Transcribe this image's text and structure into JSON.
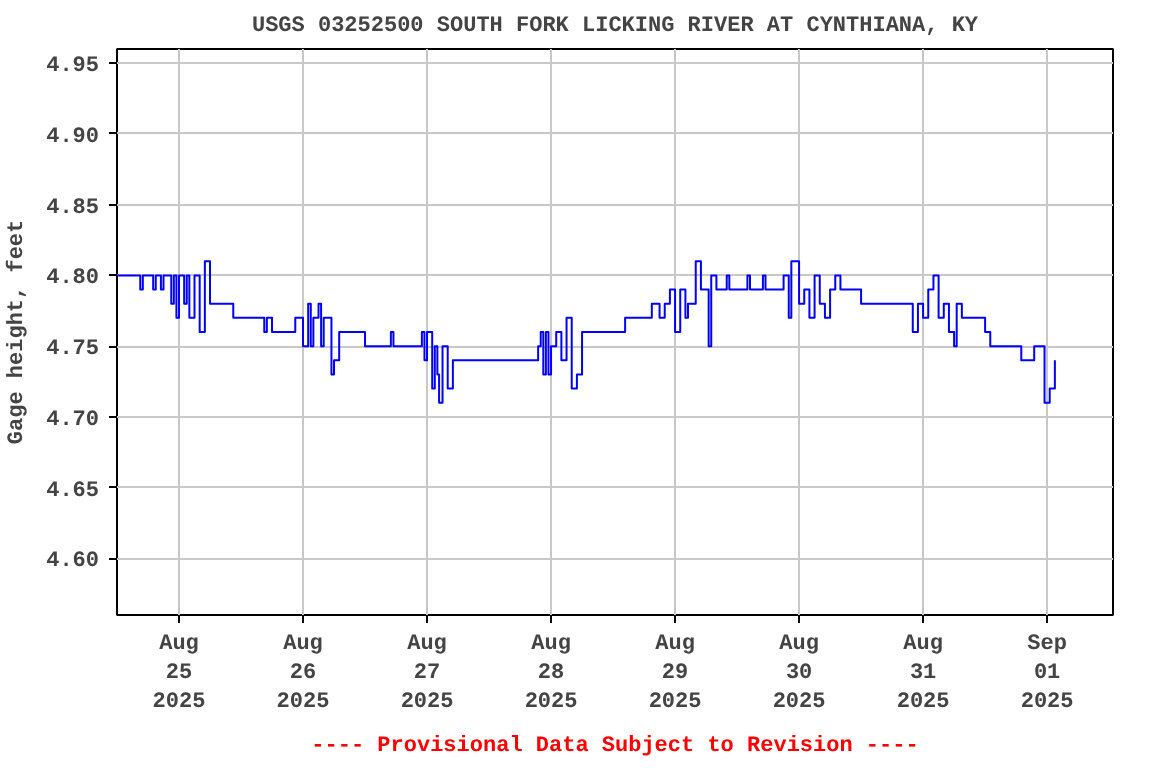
{
  "chart_data": {
    "type": "step",
    "title": "USGS 03252500 SOUTH FORK LICKING RIVER AT CYNTHIANA, KY",
    "ylabel": "Gage height, feet",
    "annotations": [
      "---- Provisional Data Subject to Revision ----"
    ],
    "xlim": [
      "2025-08-24T12:00",
      "2025-09-01T12:45"
    ],
    "xticks": [
      {
        "value": "2025-08-25",
        "label": "Aug\n25\n2025"
      },
      {
        "value": "2025-08-26",
        "label": "Aug\n26\n2025"
      },
      {
        "value": "2025-08-27",
        "label": "Aug\n27\n2025"
      },
      {
        "value": "2025-08-28",
        "label": "Aug\n28\n2025"
      },
      {
        "value": "2025-08-29",
        "label": "Aug\n29\n2025"
      },
      {
        "value": "2025-08-30",
        "label": "Aug\n30\n2025"
      },
      {
        "value": "2025-08-31",
        "label": "Aug\n31\n2025"
      },
      {
        "value": "2025-09-01",
        "label": "Sep\n01\n2025"
      }
    ],
    "ylim": [
      4.56,
      4.96
    ],
    "yticks": [
      {
        "value": 4.6,
        "label": "4.60"
      },
      {
        "value": 4.65,
        "label": "4.65"
      },
      {
        "value": 4.7,
        "label": "4.70"
      },
      {
        "value": 4.75,
        "label": "4.75"
      },
      {
        "value": 4.8,
        "label": "4.80"
      },
      {
        "value": 4.85,
        "label": "4.85"
      },
      {
        "value": 4.9,
        "label": "4.90"
      },
      {
        "value": 4.95,
        "label": "4.95"
      }
    ],
    "grid": true,
    "series": [
      {
        "color": "#0000ff",
        "x": [
          "2025-08-24T12:00",
          "2025-08-24T16:00",
          "2025-08-24T16:30",
          "2025-08-24T17:00",
          "2025-08-24T19:00",
          "2025-08-24T19:30",
          "2025-08-24T20:30",
          "2025-08-24T21:00",
          "2025-08-24T22:30",
          "2025-08-24T23:00",
          "2025-08-24T23:30",
          "2025-08-25T00:00",
          "2025-08-25T01:00",
          "2025-08-25T01:30",
          "2025-08-25T02:00",
          "2025-08-25T03:00",
          "2025-08-25T04:00",
          "2025-08-25T05:00",
          "2025-08-25T06:00",
          "2025-08-25T10:00",
          "2025-08-25T10:30",
          "2025-08-25T16:00",
          "2025-08-25T16:30",
          "2025-08-25T17:00",
          "2025-08-25T18:00",
          "2025-08-25T22:00",
          "2025-08-25T22:30",
          "2025-08-26T00:00",
          "2025-08-26T01:00",
          "2025-08-26T01:30",
          "2025-08-26T02:00",
          "2025-08-26T03:00",
          "2025-08-26T03:30",
          "2025-08-26T04:00",
          "2025-08-26T05:30",
          "2025-08-26T06:00",
          "2025-08-26T07:00",
          "2025-08-26T11:30",
          "2025-08-26T12:00",
          "2025-08-26T16:30",
          "2025-08-26T17:00",
          "2025-08-26T17:30",
          "2025-08-26T22:30",
          "2025-08-26T23:00",
          "2025-08-26T23:30",
          "2025-08-27T00:00",
          "2025-08-27T01:00",
          "2025-08-27T01:30",
          "2025-08-27T02:00",
          "2025-08-27T02:20",
          "2025-08-27T03:00",
          "2025-08-27T04:00",
          "2025-08-27T05:00",
          "2025-08-27T21:00",
          "2025-08-27T21:30",
          "2025-08-27T22:00",
          "2025-08-27T22:30",
          "2025-08-27T23:00",
          "2025-08-27T23:30",
          "2025-08-28T00:00",
          "2025-08-28T01:00",
          "2025-08-28T02:00",
          "2025-08-28T03:00",
          "2025-08-28T04:00",
          "2025-08-28T05:00",
          "2025-08-28T06:00",
          "2025-08-28T14:20",
          "2025-08-28T19:30",
          "2025-08-28T21:00",
          "2025-08-28T22:00",
          "2025-08-28T23:00",
          "2025-08-29T00:00",
          "2025-08-29T01:00",
          "2025-08-29T02:00",
          "2025-08-29T02:30",
          "2025-08-29T04:00",
          "2025-08-29T05:00",
          "2025-08-29T06:30",
          "2025-08-29T07:00",
          "2025-08-29T08:00",
          "2025-08-29T10:00",
          "2025-08-29T10:30",
          "2025-08-29T14:00",
          "2025-08-29T14:30",
          "2025-08-29T17:00",
          "2025-08-29T17:30",
          "2025-08-29T21:00",
          "2025-08-29T22:00",
          "2025-08-29T22:30",
          "2025-08-30T00:00",
          "2025-08-30T01:00",
          "2025-08-30T02:00",
          "2025-08-30T03:00",
          "2025-08-30T04:00",
          "2025-08-30T05:00",
          "2025-08-30T06:00",
          "2025-08-30T07:00",
          "2025-08-30T08:00",
          "2025-08-30T12:00",
          "2025-08-30T22:00",
          "2025-08-30T23:00",
          "2025-08-31T00:00",
          "2025-08-31T01:00",
          "2025-08-31T02:00",
          "2025-08-31T03:00",
          "2025-08-31T04:00",
          "2025-08-31T05:00",
          "2025-08-31T06:00",
          "2025-08-31T06:30",
          "2025-08-31T07:30",
          "2025-08-31T12:00",
          "2025-08-31T13:00",
          "2025-08-31T19:00",
          "2025-08-31T21:30",
          "2025-08-31T23:30",
          "2025-09-01T00:30",
          "2025-09-01T01:30"
        ],
        "values": [
          4.8,
          4.8,
          4.79,
          4.8,
          4.79,
          4.8,
          4.79,
          4.8,
          4.78,
          4.8,
          4.77,
          4.8,
          4.78,
          4.8,
          4.77,
          4.8,
          4.76,
          4.81,
          4.78,
          4.78,
          4.77,
          4.77,
          4.76,
          4.77,
          4.76,
          4.76,
          4.77,
          4.75,
          4.78,
          4.75,
          4.77,
          4.78,
          4.75,
          4.77,
          4.73,
          4.74,
          4.76,
          4.76,
          4.75,
          4.75,
          4.76,
          4.75,
          4.75,
          4.76,
          4.74,
          4.76,
          4.72,
          4.75,
          4.73,
          4.71,
          4.75,
          4.72,
          4.74,
          4.74,
          4.75,
          4.76,
          4.73,
          4.76,
          4.73,
          4.75,
          4.76,
          4.74,
          4.77,
          4.72,
          4.73,
          4.76,
          4.77,
          4.78,
          4.77,
          4.78,
          4.79,
          4.76,
          4.79,
          4.77,
          4.78,
          4.81,
          4.79,
          4.75,
          4.8,
          4.79,
          4.8,
          4.79,
          4.8,
          4.79,
          4.8,
          4.79,
          4.8,
          4.77,
          4.81,
          4.78,
          4.79,
          4.77,
          4.8,
          4.78,
          4.77,
          4.79,
          4.8,
          4.79,
          4.78,
          4.76,
          4.78,
          4.77,
          4.79,
          4.8,
          4.77,
          4.78,
          4.76,
          4.75,
          4.78,
          4.77,
          4.76,
          4.75,
          4.74,
          4.75,
          4.71,
          4.72,
          4.74
        ]
      }
    ]
  }
}
